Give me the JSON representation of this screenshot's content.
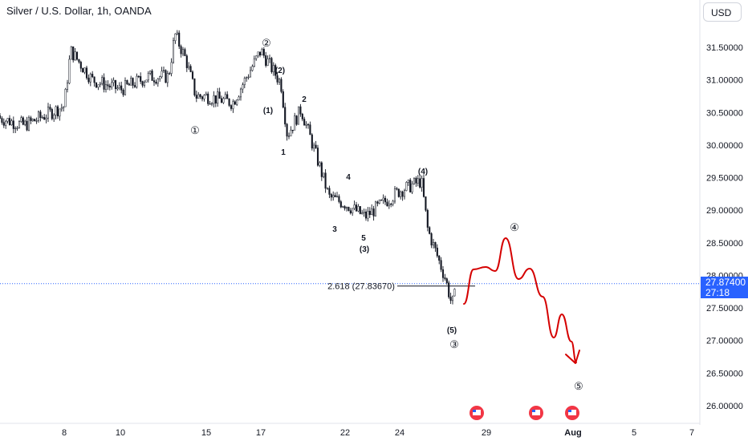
{
  "title": "Silver / U.S. Dollar, 1h, OANDA",
  "currency_button": "USD",
  "current_price": "27.87400",
  "countdown": "27:18",
  "colors": {
    "candle": "#131722",
    "projection": "#d50000",
    "price_line": "#2962ff",
    "axis_text": "#131722",
    "grid_border": "#e0e3eb"
  },
  "chart_data": {
    "type": "candlestick",
    "title": "Silver / U.S. Dollar, 1h, OANDA",
    "y_axis": {
      "ticks": [
        "31.50000",
        "31.00000",
        "30.50000",
        "30.00000",
        "29.50000",
        "29.00000",
        "28.50000",
        "28.00000",
        "27.50000",
        "27.00000",
        "26.50000",
        "26.00000"
      ],
      "range": [
        25.75,
        31.95
      ],
      "position": "right"
    },
    "x_axis": {
      "ticks": [
        "8",
        "10",
        "15",
        "17",
        "22",
        "24",
        "29",
        "Aug",
        "5",
        "7"
      ]
    },
    "close_path_approx": [
      {
        "x": "5",
        "y": 30.45
      },
      {
        "x": "7",
        "y": 30.3
      },
      {
        "x": "8",
        "y": 30.6
      },
      {
        "x": "8",
        "y": 31.45
      },
      {
        "x": "9",
        "y": 31.0
      },
      {
        "x": "10",
        "y": 30.85
      },
      {
        "x": "11",
        "y": 31.05
      },
      {
        "x": "12",
        "y": 31.05
      },
      {
        "x": "12",
        "y": 31.7
      },
      {
        "x": "13",
        "y": 31.3
      },
      {
        "x": "14",
        "y": 30.75
      },
      {
        "x": "15",
        "y": 30.75
      },
      {
        "x": "16",
        "y": 30.65
      },
      {
        "x": "17",
        "y": 31.45
      },
      {
        "x": "18",
        "y": 30.95
      },
      {
        "x": "18",
        "y": 30.15
      },
      {
        "x": "19",
        "y": 30.55
      },
      {
        "x": "20",
        "y": 29.8
      },
      {
        "x": "21",
        "y": 29.2
      },
      {
        "x": "22",
        "y": 29.1
      },
      {
        "x": "23",
        "y": 28.9
      },
      {
        "x": "24",
        "y": 29.3
      },
      {
        "x": "25",
        "y": 29.45
      },
      {
        "x": "25",
        "y": 28.7
      },
      {
        "x": "26",
        "y": 27.95
      },
      {
        "x": "26",
        "y": 27.55
      },
      {
        "x": "26",
        "y": 27.87
      }
    ],
    "fib_label": "2.618 (27.83670)",
    "wave_labels": [
      "①",
      "②",
      "(2)",
      "(1)",
      "1",
      "2",
      "3",
      "4",
      "5",
      "(3)",
      "(4)",
      "(5)",
      "③",
      "④",
      "⑤"
    ],
    "projection_path": [
      {
        "x": "27",
        "y": 27.55
      },
      {
        "x": "28",
        "y": 28.1
      },
      {
        "x": "29",
        "y": 28.05
      },
      {
        "x": "30",
        "y": 28.55
      },
      {
        "x": "31",
        "y": 27.9
      },
      {
        "x": "31",
        "y": 28.05
      },
      {
        "x": "Aug",
        "y": 27.0
      },
      {
        "x": "Aug",
        "y": 27.3
      },
      {
        "x": "Aug",
        "y": 26.65
      }
    ],
    "events": [
      "us-flag-icon",
      "us-flag-icon",
      "us-flag-icon"
    ]
  }
}
